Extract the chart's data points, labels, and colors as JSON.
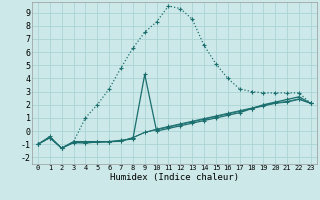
{
  "xlabel": "Humidex (Indice chaleur)",
  "bg_color": "#cce8e8",
  "grid_color": "#aad4d4",
  "line_color": "#1a6e6e",
  "xlim": [
    -0.5,
    23.5
  ],
  "ylim": [
    -2.5,
    9.8
  ],
  "xticks": [
    0,
    1,
    2,
    3,
    4,
    5,
    6,
    7,
    8,
    9,
    10,
    11,
    12,
    13,
    14,
    15,
    16,
    17,
    18,
    19,
    20,
    21,
    22,
    23
  ],
  "yticks": [
    -2,
    -1,
    0,
    1,
    2,
    3,
    4,
    5,
    6,
    7,
    8,
    9
  ],
  "curve_main_x": [
    0,
    1,
    2,
    3,
    4,
    5,
    6,
    7,
    8,
    9,
    10,
    11,
    12,
    13,
    14,
    15,
    16,
    17,
    18,
    19,
    20,
    21,
    22,
    23
  ],
  "curve_main_y": [
    -1.0,
    -0.5,
    -1.3,
    -0.8,
    1.0,
    2.0,
    3.2,
    4.8,
    6.3,
    7.5,
    8.3,
    9.5,
    9.3,
    8.5,
    6.5,
    5.1,
    4.0,
    3.2,
    3.0,
    2.9,
    2.9,
    2.9,
    2.9,
    2.1
  ],
  "curve_spike_x": [
    0,
    1,
    2,
    3,
    4,
    5,
    6,
    7,
    8,
    9,
    10,
    11,
    12,
    13,
    14,
    15,
    16,
    17,
    18,
    19,
    20,
    21,
    22,
    23
  ],
  "curve_spike_y": [
    -1.0,
    -0.5,
    -1.3,
    -0.8,
    -0.8,
    -0.8,
    -0.8,
    -0.7,
    -0.6,
    4.3,
    0.0,
    0.2,
    0.4,
    0.6,
    0.8,
    1.0,
    1.2,
    1.4,
    1.7,
    2.0,
    2.2,
    2.4,
    2.6,
    2.1
  ],
  "curve_lin1_x": [
    0,
    1,
    2,
    3,
    4,
    5,
    6,
    7,
    8,
    9,
    10,
    11,
    12,
    13,
    14,
    15,
    16,
    17,
    18,
    19,
    20,
    21,
    22,
    23
  ],
  "curve_lin1_y": [
    -1.0,
    -0.5,
    -1.3,
    -0.85,
    -0.9,
    -0.85,
    -0.8,
    -0.75,
    -0.5,
    -0.1,
    0.1,
    0.3,
    0.5,
    0.7,
    0.9,
    1.1,
    1.3,
    1.5,
    1.7,
    1.9,
    2.1,
    2.2,
    2.4,
    2.1
  ],
  "curve_lin2_x": [
    0,
    1,
    2,
    3,
    4,
    5,
    6,
    7,
    8,
    9,
    10,
    11,
    12,
    13,
    14,
    15,
    16,
    17,
    18,
    19,
    20,
    21,
    22,
    23
  ],
  "curve_lin2_y": [
    -1.0,
    -0.4,
    -1.3,
    -0.9,
    -0.9,
    -0.85,
    -0.82,
    -0.78,
    -0.5,
    -0.1,
    0.15,
    0.35,
    0.55,
    0.75,
    0.95,
    1.15,
    1.35,
    1.55,
    1.75,
    1.95,
    2.15,
    2.25,
    2.45,
    2.1
  ]
}
